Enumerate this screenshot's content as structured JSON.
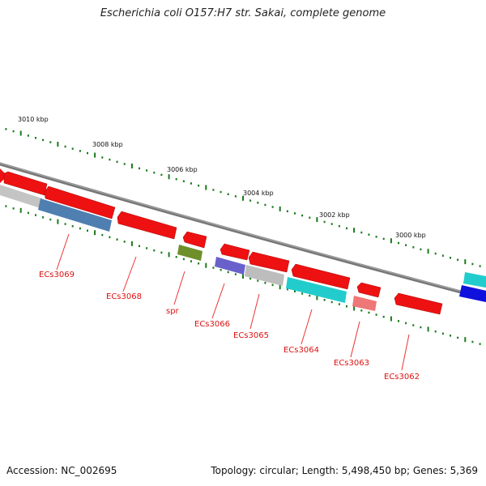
{
  "title": "Escherichia coli O157:H7 str. Sakai, complete genome",
  "footer": {
    "accession": "Accession: NC_002695",
    "summary": "Topology: circular; Length: 5,498,450 bp; Genes: 5,369"
  },
  "scale_ticks": [
    "3010 kbp",
    "3008 kbp",
    "3006 kbp",
    "3004 kbp",
    "3002 kbp",
    "3000 kbp"
  ],
  "gene_labels": [
    "ECs3069",
    "ECs3068",
    "spr",
    "ECs3066",
    "ECs3065",
    "ECs3064",
    "ECs3063",
    "ECs3062"
  ],
  "colors": {
    "backbone": "#777777",
    "scale": "#1a7a1a",
    "cds": "#ee1111",
    "label": "#dd1111",
    "steelblue": "#4f7fb0",
    "grey": "#bdbdbd",
    "olive": "#6f8f2a",
    "purple": "#6a60cc",
    "cyan": "#22cccc",
    "pink": "#ee7777",
    "blue": "#1111dd"
  }
}
